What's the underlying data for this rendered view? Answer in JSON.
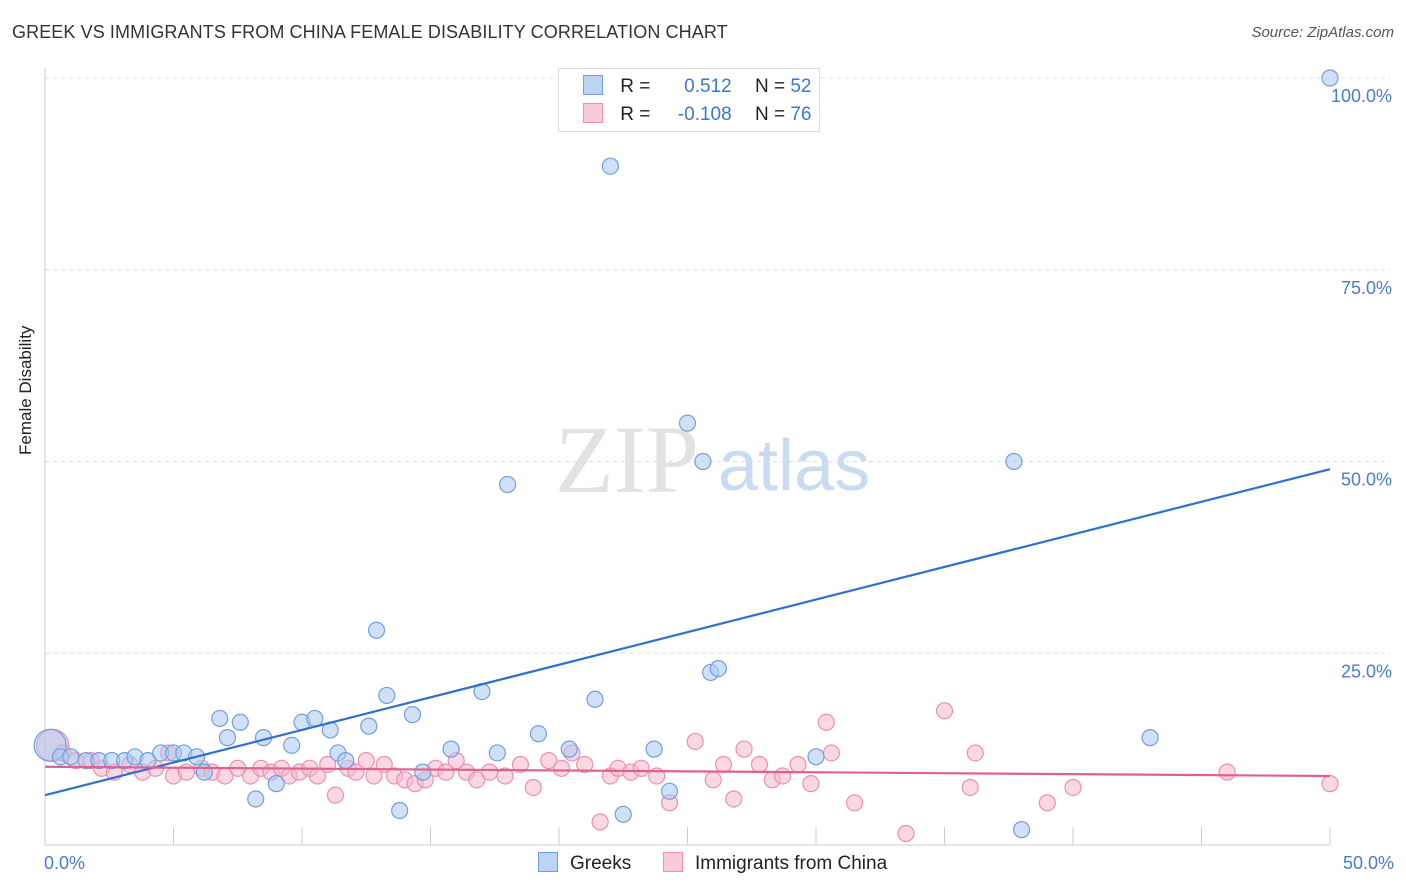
{
  "title": "GREEK VS IMMIGRANTS FROM CHINA FEMALE DISABILITY CORRELATION CHART",
  "source": "Source: ZipAtlas.com",
  "watermark": {
    "zip": "ZIP",
    "atlas": "atlas"
  },
  "colors": {
    "greeks_fill": "#a9c8f0",
    "greeks_stroke": "#6f9fe0",
    "greeks_line": "#2f6fd0",
    "china_fill": "#f6b8cc",
    "china_stroke": "#ee8fae",
    "china_line": "#e0608e",
    "tick_text": "#4a7cc7",
    "grid": "#dddddd"
  },
  "legend": {
    "rows": [
      {
        "r_label": "R =",
        "r_value": "0.512",
        "n_label": "N =",
        "n_value": "52"
      },
      {
        "r_label": "R =",
        "r_value": "-0.108",
        "n_label": "N =",
        "n_value": "76"
      }
    ]
  },
  "bottom_legend": {
    "greeks": "Greeks",
    "china": "Immigrants from China"
  },
  "chart_data": {
    "type": "scatter",
    "title": "GREEK VS IMMIGRANTS FROM CHINA FEMALE DISABILITY CORRELATION CHART",
    "xlabel": "",
    "ylabel": "Female Disability",
    "xlim": [
      0,
      50
    ],
    "ylim": [
      0,
      100
    ],
    "x_tick_labels": [
      "0.0%",
      "50.0%"
    ],
    "y_ticks": [
      25,
      50,
      75,
      100
    ],
    "y_tick_labels": [
      "25.0%",
      "50.0%",
      "75.0%",
      "100.0%"
    ],
    "grid": true,
    "series": [
      {
        "name": "Greeks",
        "r": 0.512,
        "n": 52,
        "trend": {
          "x": [
            0,
            50
          ],
          "y": [
            6.5,
            49
          ]
        },
        "points": [
          [
            0.2,
            13.0
          ],
          [
            0.6,
            11.5
          ],
          [
            1.0,
            11.5
          ],
          [
            1.6,
            11.0
          ],
          [
            2.1,
            11.0
          ],
          [
            2.6,
            11.0
          ],
          [
            3.1,
            11.0
          ],
          [
            3.5,
            11.5
          ],
          [
            4.0,
            11.0
          ],
          [
            4.5,
            12.0
          ],
          [
            5.0,
            12.0
          ],
          [
            5.4,
            12.0
          ],
          [
            5.9,
            11.5
          ],
          [
            6.2,
            9.5
          ],
          [
            6.8,
            16.5
          ],
          [
            7.1,
            14.0
          ],
          [
            7.6,
            16.0
          ],
          [
            8.2,
            6.0
          ],
          [
            8.5,
            14.0
          ],
          [
            9.0,
            8.0
          ],
          [
            9.6,
            13.0
          ],
          [
            10.0,
            16.0
          ],
          [
            10.5,
            16.5
          ],
          [
            11.1,
            15.0
          ],
          [
            11.4,
            12.0
          ],
          [
            11.7,
            11.0
          ],
          [
            12.6,
            15.5
          ],
          [
            12.9,
            28.0
          ],
          [
            13.3,
            19.5
          ],
          [
            13.8,
            4.5
          ],
          [
            14.3,
            17.0
          ],
          [
            14.7,
            9.5
          ],
          [
            15.8,
            12.5
          ],
          [
            17.0,
            20.0
          ],
          [
            17.6,
            12.0
          ],
          [
            18.0,
            47.0
          ],
          [
            19.2,
            14.5
          ],
          [
            20.4,
            12.5
          ],
          [
            21.4,
            19.0
          ],
          [
            22.0,
            88.5
          ],
          [
            22.5,
            4.0
          ],
          [
            23.7,
            12.5
          ],
          [
            24.3,
            7.0
          ],
          [
            25.0,
            55.0
          ],
          [
            25.6,
            50.0
          ],
          [
            25.9,
            22.5
          ],
          [
            26.2,
            23.0
          ],
          [
            30.0,
            11.5
          ],
          [
            37.7,
            50.0
          ],
          [
            38.0,
            2.0
          ],
          [
            43.0,
            14.0
          ],
          [
            50.0,
            100.0
          ]
        ]
      },
      {
        "name": "Immigrants from China",
        "r": -0.108,
        "n": 76,
        "trend": {
          "x": [
            0,
            50
          ],
          "y": [
            10.2,
            9.0
          ]
        },
        "points": [
          [
            0.3,
            13.0
          ],
          [
            0.7,
            12.0
          ],
          [
            1.2,
            11.0
          ],
          [
            1.8,
            11.0
          ],
          [
            2.2,
            10.0
          ],
          [
            2.7,
            9.5
          ],
          [
            3.3,
            10.5
          ],
          [
            3.8,
            9.5
          ],
          [
            4.3,
            10.0
          ],
          [
            4.8,
            12.0
          ],
          [
            5.0,
            9.0
          ],
          [
            5.5,
            9.5
          ],
          [
            6.1,
            10.0
          ],
          [
            6.5,
            9.5
          ],
          [
            7.0,
            9.0
          ],
          [
            7.5,
            10.0
          ],
          [
            8.0,
            9.0
          ],
          [
            8.4,
            10.0
          ],
          [
            8.8,
            9.5
          ],
          [
            9.2,
            10.0
          ],
          [
            9.5,
            9.0
          ],
          [
            9.9,
            9.5
          ],
          [
            10.3,
            10.0
          ],
          [
            10.6,
            9.0
          ],
          [
            11.0,
            10.5
          ],
          [
            11.3,
            6.5
          ],
          [
            11.8,
            10.0
          ],
          [
            12.1,
            9.5
          ],
          [
            12.5,
            11.0
          ],
          [
            12.8,
            9.0
          ],
          [
            13.2,
            10.5
          ],
          [
            13.6,
            9.0
          ],
          [
            14.0,
            8.5
          ],
          [
            14.4,
            8.0
          ],
          [
            14.8,
            8.5
          ],
          [
            15.2,
            10.0
          ],
          [
            15.6,
            9.5
          ],
          [
            16.0,
            11.0
          ],
          [
            16.4,
            9.5
          ],
          [
            16.8,
            8.5
          ],
          [
            17.3,
            9.5
          ],
          [
            17.9,
            9.0
          ],
          [
            18.5,
            10.5
          ],
          [
            19.0,
            7.5
          ],
          [
            19.6,
            11.0
          ],
          [
            20.1,
            10.0
          ],
          [
            20.5,
            12.0
          ],
          [
            21.0,
            10.5
          ],
          [
            21.6,
            3.0
          ],
          [
            22.0,
            9.0
          ],
          [
            22.3,
            10.0
          ],
          [
            22.8,
            9.5
          ],
          [
            23.2,
            10.0
          ],
          [
            23.8,
            9.0
          ],
          [
            24.3,
            5.5
          ],
          [
            25.3,
            13.5
          ],
          [
            26.0,
            8.5
          ],
          [
            26.4,
            10.5
          ],
          [
            26.8,
            6.0
          ],
          [
            27.2,
            12.5
          ],
          [
            27.8,
            10.5
          ],
          [
            28.3,
            8.5
          ],
          [
            28.7,
            9.0
          ],
          [
            29.3,
            10.5
          ],
          [
            29.8,
            8.0
          ],
          [
            30.4,
            16.0
          ],
          [
            30.6,
            12.0
          ],
          [
            31.5,
            5.5
          ],
          [
            33.5,
            1.5
          ],
          [
            35.0,
            17.5
          ],
          [
            36.0,
            7.5
          ],
          [
            36.2,
            12.0
          ],
          [
            39.0,
            5.5
          ],
          [
            40.0,
            7.5
          ],
          [
            46.0,
            9.5
          ],
          [
            50.0,
            8.0
          ]
        ]
      }
    ]
  }
}
